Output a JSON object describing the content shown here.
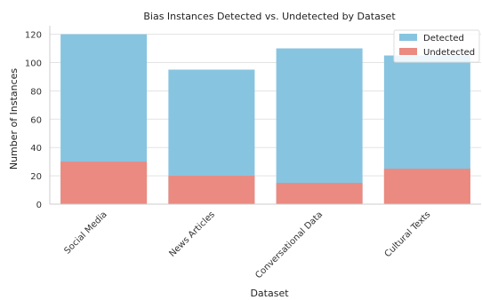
{
  "chart_data": {
    "type": "bar",
    "title": "Bias Instances Detected vs. Undetected by Dataset",
    "xlabel": "Dataset",
    "ylabel": "Number of Instances",
    "categories": [
      "Social Media",
      "News Articles",
      "Conversational Data",
      "Cultural Texts"
    ],
    "series": [
      {
        "name": "Detected",
        "values": [
          120,
          95,
          110,
          105
        ],
        "color": "#87c4e0"
      },
      {
        "name": "Undetected",
        "values": [
          30,
          20,
          15,
          25
        ],
        "color": "#eb8a80"
      }
    ],
    "ylim": [
      0,
      126
    ],
    "yticks": [
      0,
      20,
      40,
      60,
      80,
      100,
      120
    ],
    "grid": "horizontal",
    "legend_position": "top-right",
    "overlaid": true
  }
}
